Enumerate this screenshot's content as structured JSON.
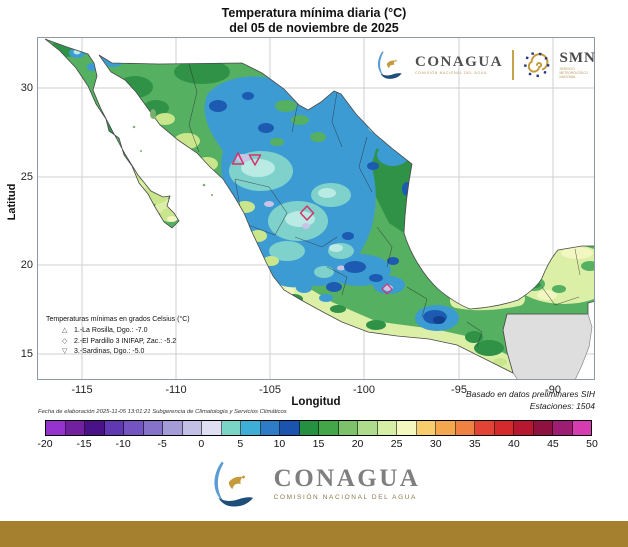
{
  "title": {
    "line1": "Temperatura mínima diaria (°C)",
    "line2": "del 05 de noviembre de 2025"
  },
  "header": {
    "conagua": {
      "name": "CONAGUA",
      "subtitle": "COMISIÓN NACIONAL DEL AGUA"
    },
    "smn": {
      "name": "SMN",
      "subtitle": "SERVICIO METEOROLÓGICO NACIONAL"
    }
  },
  "axes": {
    "x_label": "Longitud",
    "y_label": "Latitud",
    "x_ticks": [
      "-115",
      "-110",
      "-105",
      "-100",
      "-95",
      "-90"
    ],
    "y_ticks": [
      "30",
      "25",
      "20",
      "15"
    ]
  },
  "station_legend": {
    "title": "Temperaturas mínimas en grados Celsius (°C)",
    "items": [
      {
        "marker": "△",
        "text": "1.-La Rosilla, Dgo.: -7.0"
      },
      {
        "marker": "◇",
        "text": "2.-El Pardillo 3 INIFAP, Zac.: -5.2"
      },
      {
        "marker": "▽",
        "text": "3.-Sardinas, Dgo.: -5.0"
      }
    ]
  },
  "notes": {
    "elaboration": "Fecha de elaboración 2025-11-05 13:01:21 Subgerencia de Climatología y Servicios Climáticos",
    "based_on": "Basado en datos preliminares SIH",
    "stations": "Estaciones: 1504"
  },
  "footer": {
    "brand": "CONAGUA",
    "subtitle": "COMISIÓN NACIONAL DEL AGUA",
    "bar_color": "#A5802F"
  },
  "chart_data": {
    "type": "heatmap",
    "title": "Temperatura mínima diaria (°C)",
    "subtitle": "del 05 de noviembre de 2025",
    "xlabel": "Longitud",
    "ylabel": "Latitud",
    "xlim": [
      -117.4,
      -87.8
    ],
    "ylim": [
      13.5,
      32.9
    ],
    "grid": true,
    "region": "México",
    "units": "°C",
    "colorbar": {
      "min": -20,
      "max": 50,
      "segment_step": 2.5,
      "tick_labels": [
        "-20",
        "-15",
        "-10",
        "-5",
        "0",
        "5",
        "10",
        "15",
        "20",
        "25",
        "30",
        "35",
        "40",
        "45",
        "50"
      ],
      "colors": [
        "#9632CE",
        "#71209F",
        "#491289",
        "#6038B2",
        "#7354C0",
        "#8672C9",
        "#A49CD6",
        "#C2C0E4",
        "#DEDFF2",
        "#79D6C6",
        "#3FAED6",
        "#2E7BC8",
        "#1A54AE",
        "#259140",
        "#43A649",
        "#7DC26B",
        "#AEDC8C",
        "#D7EEA6",
        "#F4F8BE",
        "#F7CE6B",
        "#F5A74F",
        "#EF8243",
        "#E14435",
        "#D42A2D",
        "#B51830",
        "#8E1140",
        "#9C1D72",
        "#D63BB0"
      ]
    },
    "coldest_stations": [
      {
        "rank": 1,
        "name": "La Rosilla, Dgo.",
        "temp_c": -7.0,
        "marker": "triangle-up",
        "lon": -106.5,
        "lat": 26.3
      },
      {
        "rank": 2,
        "name": "El Pardillo 3 INIFAP, Zac.",
        "temp_c": -5.2,
        "marker": "diamond",
        "lon": -103.1,
        "lat": 23.3
      },
      {
        "rank": 3,
        "name": "Sardinas, Dgo.",
        "temp_c": -5.0,
        "marker": "triangle-down",
        "lon": -105.7,
        "lat": 26.1
      }
    ],
    "stations_total": 1504,
    "source": "Basado en datos preliminares SIH"
  }
}
